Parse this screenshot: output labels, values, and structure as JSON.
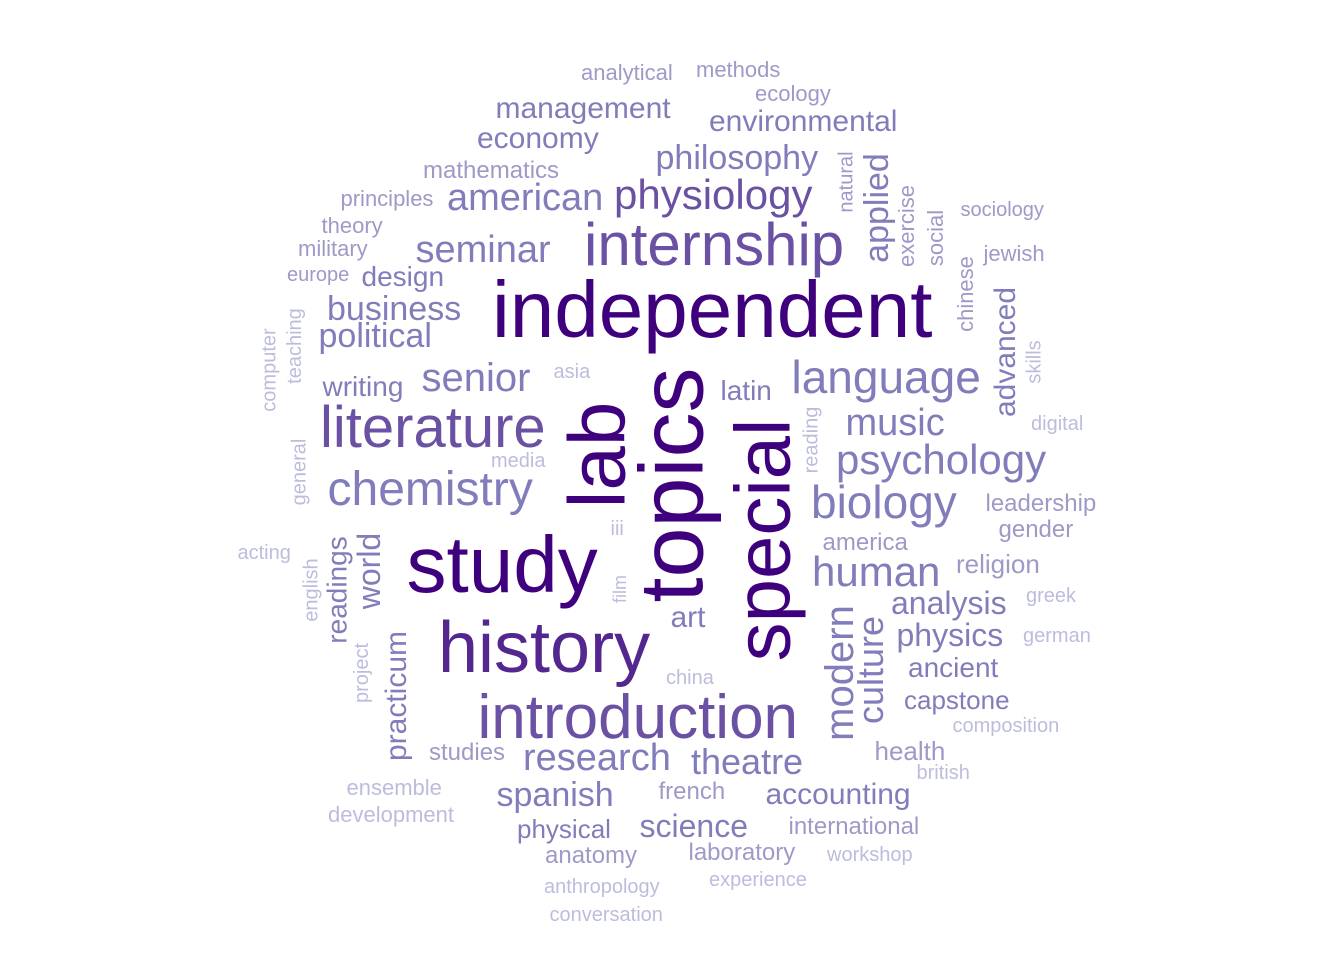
{
  "palette": {
    "level_1": "#3f007d",
    "level_2": "#54278f",
    "level_3": "#6a51a3",
    "level_4": "#807dba",
    "level_5": "#9e9ac8",
    "level_6": "#bcbddc"
  },
  "words": [
    {
      "text": "independent",
      "level": 1
    },
    {
      "text": "topics",
      "level": 1
    },
    {
      "text": "special",
      "level": 1
    },
    {
      "text": "study",
      "level": 1
    },
    {
      "text": "lab",
      "level": 1
    },
    {
      "text": "history",
      "level": 2
    },
    {
      "text": "introduction",
      "level": 3
    },
    {
      "text": "internship",
      "level": 3
    },
    {
      "text": "literature",
      "level": 3
    },
    {
      "text": "physiology",
      "level": 3
    },
    {
      "text": "language",
      "level": 4
    },
    {
      "text": "chemistry",
      "level": 4
    },
    {
      "text": "biology",
      "level": 4
    },
    {
      "text": "psychology",
      "level": 4
    },
    {
      "text": "seminar",
      "level": 4
    },
    {
      "text": "american",
      "level": 4
    },
    {
      "text": "research",
      "level": 4
    },
    {
      "text": "human",
      "level": 4
    },
    {
      "text": "senior",
      "level": 4
    },
    {
      "text": "modern",
      "level": 4
    },
    {
      "text": "culture",
      "level": 4
    },
    {
      "text": "music",
      "level": 4
    },
    {
      "text": "philosophy",
      "level": 4
    },
    {
      "text": "theatre",
      "level": 4
    },
    {
      "text": "political",
      "level": 4
    },
    {
      "text": "business",
      "level": 4
    },
    {
      "text": "environmental",
      "level": 4
    },
    {
      "text": "management",
      "level": 4
    },
    {
      "text": "economy",
      "level": 4
    },
    {
      "text": "applied",
      "level": 4
    },
    {
      "text": "advanced",
      "level": 4
    },
    {
      "text": "analysis",
      "level": 4
    },
    {
      "text": "physics",
      "level": 4
    },
    {
      "text": "spanish",
      "level": 4
    },
    {
      "text": "accounting",
      "level": 4
    },
    {
      "text": "science",
      "level": 4
    },
    {
      "text": "world",
      "level": 4
    },
    {
      "text": "readings",
      "level": 4
    },
    {
      "text": "practicum",
      "level": 4
    },
    {
      "text": "writing",
      "level": 4
    },
    {
      "text": "design",
      "level": 4
    },
    {
      "text": "ancient",
      "level": 4
    },
    {
      "text": "capstone",
      "level": 4
    },
    {
      "text": "art",
      "level": 4
    },
    {
      "text": "latin",
      "level": 4
    },
    {
      "text": "physical",
      "level": 4
    },
    {
      "text": "religion",
      "level": 5
    },
    {
      "text": "health",
      "level": 5
    },
    {
      "text": "laboratory",
      "level": 5
    },
    {
      "text": "anatomy",
      "level": 5
    },
    {
      "text": "gender",
      "level": 5
    },
    {
      "text": "leadership",
      "level": 5
    },
    {
      "text": "international",
      "level": 5
    },
    {
      "text": "america",
      "level": 5
    },
    {
      "text": "studies",
      "level": 5
    },
    {
      "text": "french",
      "level": 5
    },
    {
      "text": "mathematics",
      "level": 5
    },
    {
      "text": "principles",
      "level": 5
    },
    {
      "text": "theory",
      "level": 5
    },
    {
      "text": "military",
      "level": 5
    },
    {
      "text": "europe",
      "level": 5
    },
    {
      "text": "analytical",
      "level": 5
    },
    {
      "text": "methods",
      "level": 5
    },
    {
      "text": "ecology",
      "level": 5
    },
    {
      "text": "natural",
      "level": 5
    },
    {
      "text": "exercise",
      "level": 5
    },
    {
      "text": "social",
      "level": 5
    },
    {
      "text": "chinese",
      "level": 5
    },
    {
      "text": "sociology",
      "level": 5
    },
    {
      "text": "jewish",
      "level": 5
    },
    {
      "text": "skills",
      "level": 6
    },
    {
      "text": "digital",
      "level": 6
    },
    {
      "text": "reading",
      "level": 6
    },
    {
      "text": "asia",
      "level": 6
    },
    {
      "text": "media",
      "level": 6
    },
    {
      "text": "iii",
      "level": 6
    },
    {
      "text": "film",
      "level": 6
    },
    {
      "text": "china",
      "level": 6
    },
    {
      "text": "greek",
      "level": 6
    },
    {
      "text": "german",
      "level": 6
    },
    {
      "text": "composition",
      "level": 6
    },
    {
      "text": "british",
      "level": 6
    },
    {
      "text": "workshop",
      "level": 6
    },
    {
      "text": "experience",
      "level": 6
    },
    {
      "text": "anthropology",
      "level": 6
    },
    {
      "text": "conversation",
      "level": 6
    },
    {
      "text": "ensemble",
      "level": 6
    },
    {
      "text": "development",
      "level": 6
    },
    {
      "text": "project",
      "level": 6
    },
    {
      "text": "english",
      "level": 6
    },
    {
      "text": "general",
      "level": 6
    },
    {
      "text": "computer",
      "level": 6
    },
    {
      "text": "teaching",
      "level": 6
    },
    {
      "text": "acting",
      "level": 6
    }
  ]
}
